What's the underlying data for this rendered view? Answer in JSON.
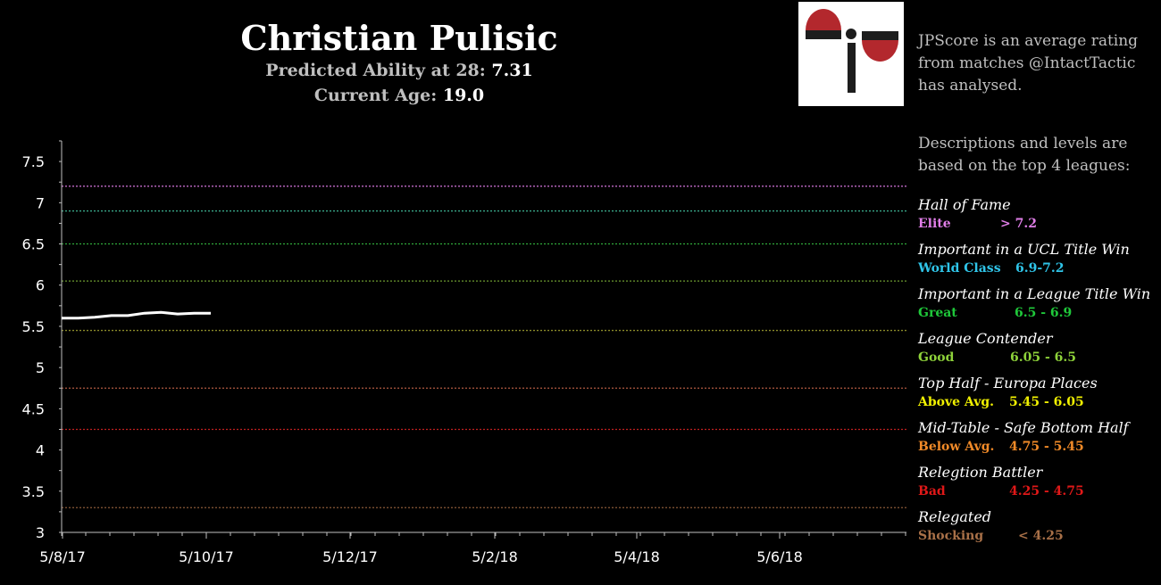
{
  "header": {
    "player_name": "Christian Pulisic",
    "predicted_label": "Predicted Ability at 28:",
    "predicted_value": "7.31",
    "age_label": "Current Age:",
    "age_value": "19.0"
  },
  "sidebar": {
    "intro": "JPScore is an average rating from matches @IntactTactic has analysed.",
    "basis": "Descriptions and levels are based on the top 4 leagues:",
    "levels": [
      {
        "description": "Hall of Fame",
        "name": "Elite",
        "range": "> 7.2",
        "color": "#e07ee8"
      },
      {
        "description": "Important in a UCL Title Win",
        "name": "World Class",
        "range": "6.9-7.2",
        "color": "#2fc4e8"
      },
      {
        "description": "Important in a League Title Win",
        "name": "Great",
        "range": "6.5 - 6.9",
        "color": "#1fc83a"
      },
      {
        "description": "League Contender",
        "name": "Good",
        "range": "6.05 - 6.5",
        "color": "#8ed23a"
      },
      {
        "description": "Top Half - Europa Places",
        "name": "Above Avg.",
        "range": "5.45 - 6.05",
        "color": "#f0f000"
      },
      {
        "description": "Mid-Table - Safe Bottom Half",
        "name": "Below Avg.",
        "range": "4.75 - 5.45",
        "color": "#f08a28"
      },
      {
        "description": "Relegtion Battler",
        "name": "Bad",
        "range": "4.25 - 4.75",
        "color": "#e01818"
      },
      {
        "description": "Relegated",
        "name": "Shocking",
        "range": "< 4.25",
        "color": "#a87048"
      }
    ]
  },
  "chart_data": {
    "type": "line",
    "title": "",
    "xlabel": "",
    "ylabel": "",
    "ylim": [
      3,
      7.75
    ],
    "y_ticks": [
      "3",
      "3.5",
      "4",
      "4.5",
      "5",
      "5.5",
      "6",
      "6.5",
      "7",
      "7.5"
    ],
    "x_ticks": [
      "5/8/17",
      "5/10/17",
      "5/12/17",
      "5/2/18",
      "5/4/18",
      "5/6/18"
    ],
    "series": [
      {
        "values": [
          5.6,
          5.6,
          5.61,
          5.63,
          5.63,
          5.66,
          5.67,
          5.65,
          5.66,
          5.66
        ],
        "color": "#ffffff"
      }
    ],
    "reference_lines": [
      {
        "y": 7.2,
        "color": "#c06ac8"
      },
      {
        "y": 6.9,
        "color": "#3aa88a"
      },
      {
        "y": 6.5,
        "color": "#2fa83a"
      },
      {
        "y": 6.05,
        "color": "#6c9a30"
      },
      {
        "y": 5.45,
        "color": "#8a8a2a"
      },
      {
        "y": 4.75,
        "color": "#b05a40"
      },
      {
        "y": 4.25,
        "color": "#c02020"
      },
      {
        "y": 3.3,
        "color": "#8a5a38"
      }
    ],
    "grid": false
  }
}
